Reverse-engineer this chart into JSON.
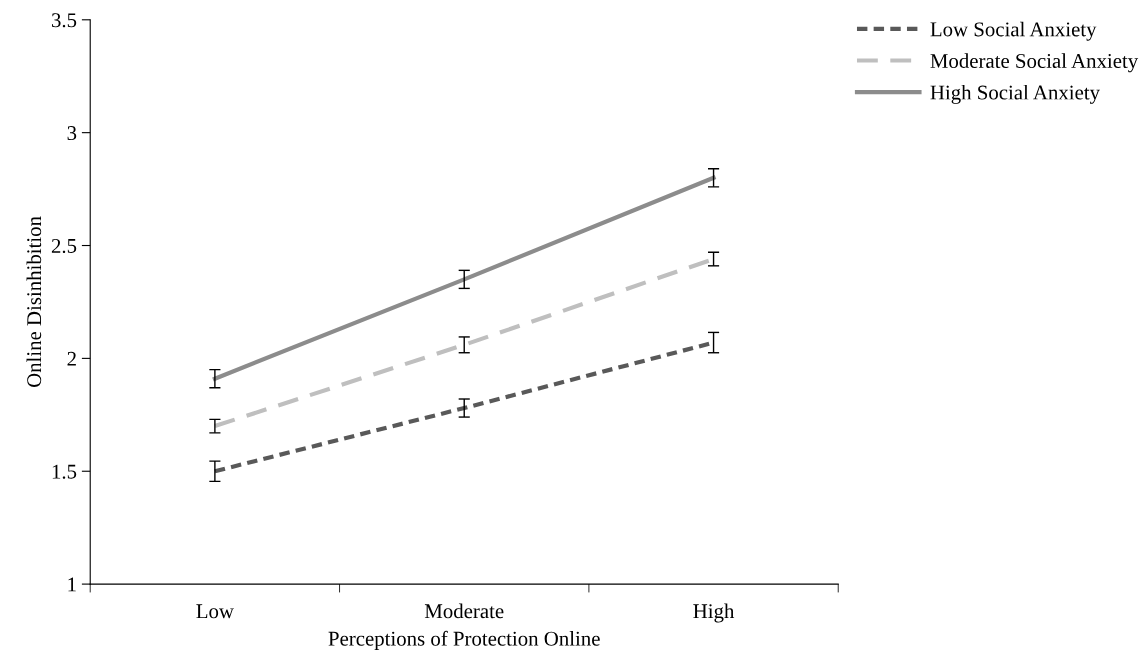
{
  "chart_data": {
    "type": "line",
    "xlabel": "Perceptions of Protection Online",
    "ylabel": "Online Disinhibition",
    "categories": [
      "Low",
      "Moderate",
      "High"
    ],
    "series": [
      {
        "name": "Low Social Anxiety",
        "color": "#595959",
        "line_style": "dotted",
        "values": [
          1.5,
          1.78,
          2.07
        ],
        "errors": [
          0.045,
          0.04,
          0.045
        ]
      },
      {
        "name": "Moderate Social Anxiety",
        "color": "#bfbfbf",
        "line_style": "dashed",
        "values": [
          1.7,
          2.06,
          2.44
        ],
        "errors": [
          0.03,
          0.035,
          0.03
        ]
      },
      {
        "name": "High Social Anxiety",
        "color": "#8c8c8c",
        "line_style": "solid",
        "values": [
          1.91,
          2.35,
          2.8
        ],
        "errors": [
          0.04,
          0.04,
          0.04
        ]
      }
    ],
    "ylim": [
      1,
      3.5
    ],
    "yticks": [
      1,
      1.5,
      2,
      2.5,
      3,
      3.5
    ],
    "grid": false,
    "legend": "top right",
    "marker": "none"
  }
}
